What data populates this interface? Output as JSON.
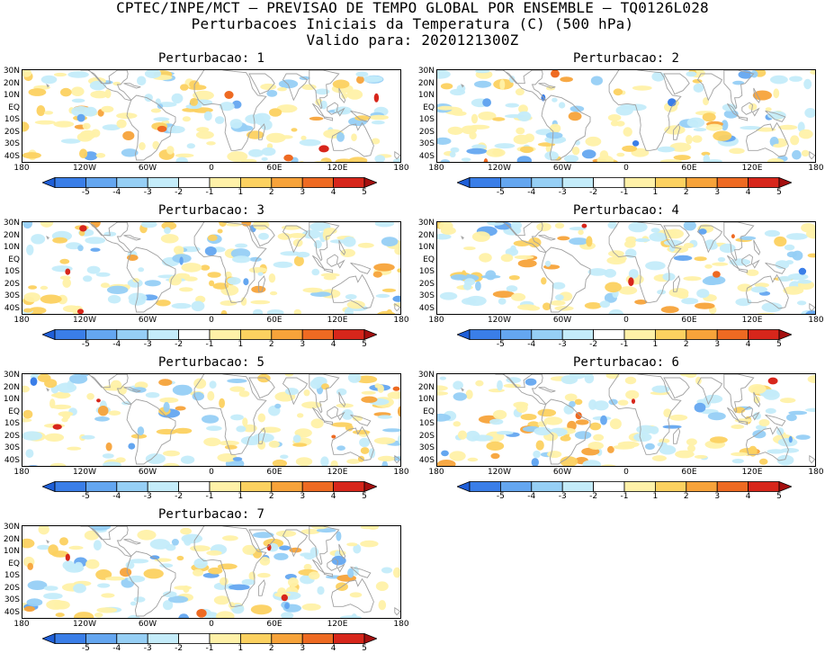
{
  "header": {
    "line1": "CPTEC/INPE/MCT – PREVISAO DE TEMPO GLOBAL POR ENSEMBLE – TQ0126L028",
    "line2": "Perturbacoes Iniciais da Temperatura (C) (500 hPa)",
    "line3": "Valido para: 2020121300Z"
  },
  "panels": [
    {
      "title": "Perturbacao: 1"
    },
    {
      "title": "Perturbacao: 2"
    },
    {
      "title": "Perturbacao: 3"
    },
    {
      "title": "Perturbacao: 4"
    },
    {
      "title": "Perturbacao: 5"
    },
    {
      "title": "Perturbacao: 6"
    },
    {
      "title": "Perturbacao: 7"
    }
  ],
  "lat_ticks": [
    "30N",
    "20N",
    "10N",
    "EQ",
    "10S",
    "20S",
    "30S",
    "40S"
  ],
  "lon_ticks": [
    "180",
    "120W",
    "60W",
    "0",
    "60E",
    "120E",
    "180"
  ],
  "colorbar": {
    "labels": [
      "-5",
      "-4",
      "-3",
      "-2",
      "-1",
      "1",
      "2",
      "3",
      "4",
      "5"
    ],
    "colors": [
      "#1f5fd8",
      "#3a7ee8",
      "#64a6f0",
      "#96cff5",
      "#c4ecfa",
      "#ffffff",
      "#fff1a8",
      "#fcd160",
      "#f7a33a",
      "#ee6a22",
      "#d7261b",
      "#a50f0f"
    ]
  }
}
